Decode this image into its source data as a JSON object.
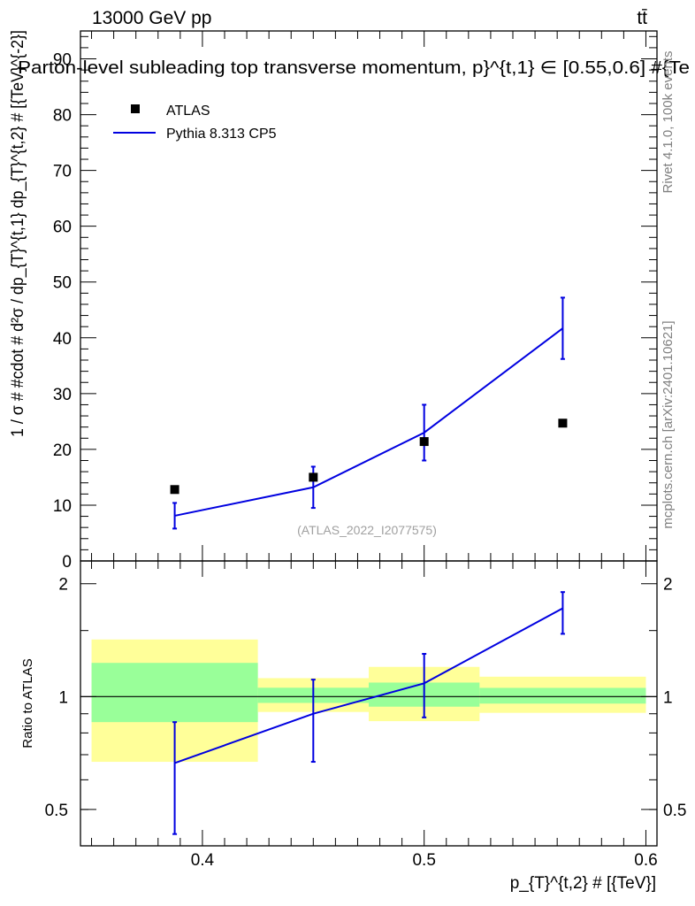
{
  "header": {
    "energy_label": "13000 GeV pp",
    "process_label": "tt̄",
    "title": "Parton-level subleading top transverse momentum, p}^{t,1} ∈ [0.55,0.6] #{Te",
    "watermark": "(ATLAS_2022_I2077575)",
    "side_rivet": "Rivet 4.1.0,  100k events",
    "side_mcplots": "mcplots.cern.ch [arXiv:2401.10621]"
  },
  "legend": {
    "items": [
      {
        "label": "ATLAS",
        "marker": "square",
        "color": "#000000"
      },
      {
        "label": "Pythia 8.313 CP5",
        "marker": "line",
        "color": "#0000e0"
      }
    ]
  },
  "chart_data": [
    {
      "type": "scatter",
      "panel": "main",
      "ylabel": "1 / σ # #cdot # d²σ / dp_{T}^{t,1} dp_{T}^{t,2} # [{TeV}^{-2}]",
      "xlim": [
        0.345,
        0.605
      ],
      "ylim": [
        0,
        95
      ],
      "y_ticks": [
        0,
        10,
        20,
        30,
        40,
        50,
        60,
        70,
        80,
        90
      ],
      "series": [
        {
          "name": "ATLAS",
          "x": [
            0.3875,
            0.45,
            0.5,
            0.5625
          ],
          "y": [
            12.8,
            15.0,
            21.4,
            24.7
          ]
        },
        {
          "name": "Pythia 8.313 CP5",
          "x": [
            0.3875,
            0.45,
            0.5,
            0.5625
          ],
          "y": [
            8.1,
            13.2,
            23.0,
            41.7
          ],
          "yerr_low": [
            2.3,
            3.7,
            5.0,
            5.5
          ],
          "yerr_high": [
            2.3,
            3.7,
            5.0,
            5.5
          ]
        }
      ]
    },
    {
      "type": "line",
      "panel": "ratio",
      "ylabel": "Ratio to ATLAS",
      "xlabel": "p_{T}^{t,2} # [{TeV}]",
      "xlim": [
        0.345,
        0.605
      ],
      "ylim": [
        0.4,
        2.3
      ],
      "y_ticks": [
        0.5,
        1,
        2
      ],
      "x_ticks": [
        0.4,
        0.5,
        0.6
      ],
      "bands": [
        {
          "x_low": 0.35,
          "x_high": 0.425,
          "green": [
            0.855,
            1.23
          ],
          "yellow": [
            0.67,
            1.42
          ]
        },
        {
          "x_low": 0.425,
          "x_high": 0.475,
          "green": [
            0.962,
            1.056
          ],
          "yellow": [
            0.91,
            1.12
          ]
        },
        {
          "x_low": 0.475,
          "x_high": 0.525,
          "green": [
            0.94,
            1.09
          ],
          "yellow": [
            0.86,
            1.2
          ]
        },
        {
          "x_low": 0.525,
          "x_high": 0.6,
          "green": [
            0.958,
            1.055
          ],
          "yellow": [
            0.905,
            1.13
          ]
        }
      ],
      "series": [
        {
          "name": "Pythia 8.313 CP5",
          "x": [
            0.3875,
            0.45,
            0.5,
            0.5625
          ],
          "y": [
            0.665,
            0.9,
            1.085,
            1.72
          ],
          "yerr_low": [
            0.235,
            0.23,
            0.205,
            0.25
          ],
          "yerr_high": [
            0.19,
            0.21,
            0.215,
            0.18
          ]
        }
      ]
    }
  ]
}
